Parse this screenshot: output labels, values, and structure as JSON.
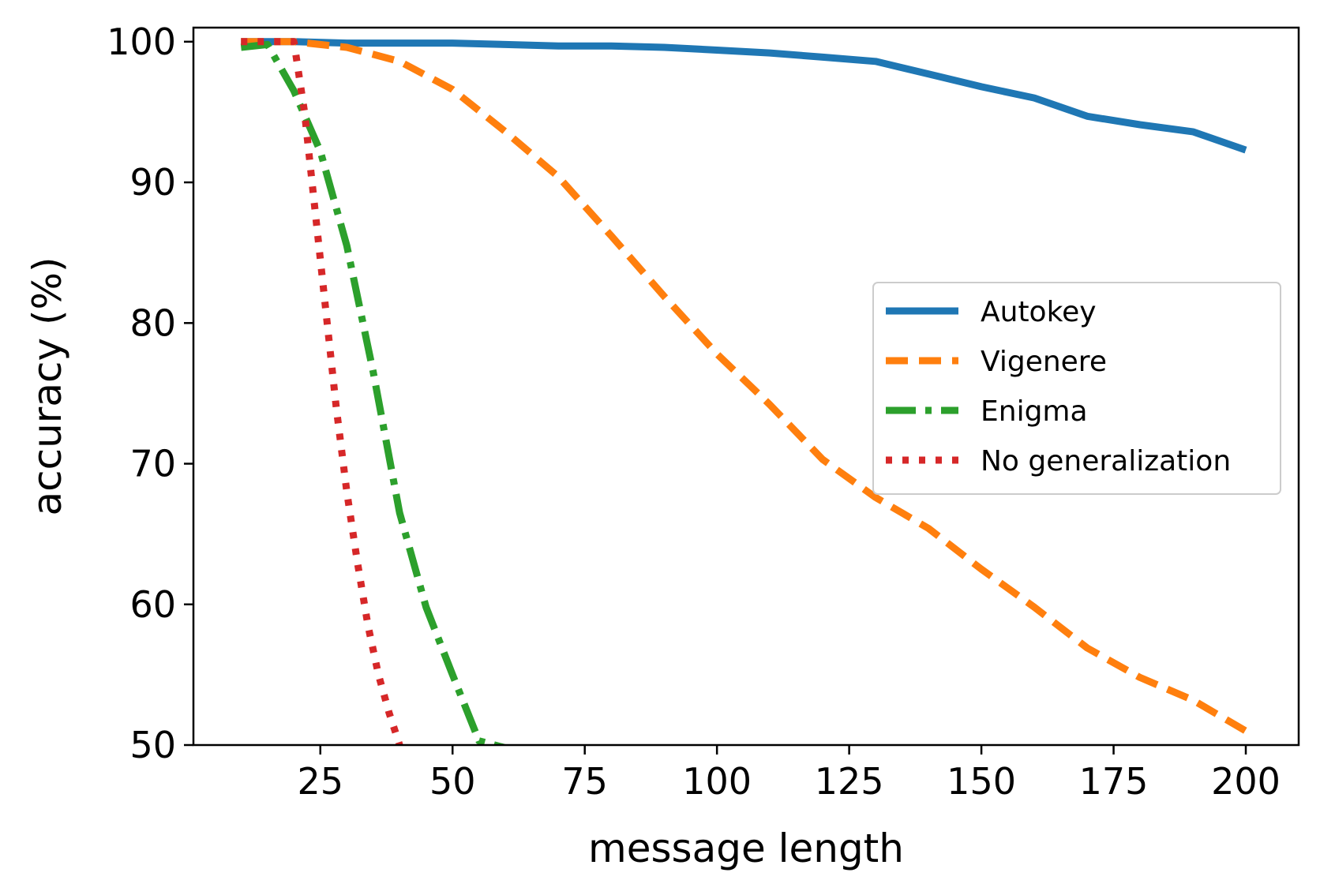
{
  "chart_data": {
    "type": "line",
    "title": "",
    "xlabel": "message length",
    "ylabel": "accuracy (%)",
    "xlim": [
      1,
      210
    ],
    "ylim": [
      50,
      101
    ],
    "xticks": [
      25,
      50,
      75,
      100,
      125,
      150,
      175,
      200
    ],
    "yticks": [
      50,
      60,
      70,
      80,
      90,
      100
    ],
    "grid": false,
    "legend_position": "center-right",
    "series": [
      {
        "name": "Autokey",
        "color": "#1f77b4",
        "style": "solid",
        "x": [
          10,
          20,
          30,
          40,
          50,
          60,
          70,
          80,
          90,
          100,
          110,
          120,
          130,
          140,
          150,
          160,
          170,
          180,
          190,
          200
        ],
        "y": [
          100,
          100,
          99.9,
          99.9,
          99.9,
          99.8,
          99.7,
          99.7,
          99.6,
          99.4,
          99.2,
          98.9,
          98.6,
          97.7,
          96.8,
          96.0,
          94.7,
          94.1,
          93.6,
          92.3
        ]
      },
      {
        "name": "Vigenere",
        "color": "#ff7f0e",
        "style": "dashed",
        "x": [
          10,
          20,
          30,
          40,
          50,
          60,
          70,
          80,
          90,
          100,
          110,
          120,
          130,
          140,
          150,
          160,
          170,
          180,
          190,
          200
        ],
        "y": [
          100,
          100,
          99.6,
          98.6,
          96.6,
          93.6,
          90.4,
          86.2,
          81.9,
          77.8,
          74.2,
          70.3,
          67.6,
          65.4,
          62.5,
          59.8,
          56.9,
          54.8,
          53.2,
          51.0
        ]
      },
      {
        "name": "Enigma",
        "color": "#2ca02c",
        "style": "dashdot",
        "x": [
          10,
          15,
          20,
          25,
          30,
          35,
          40,
          45,
          50,
          55,
          60
        ],
        "y": [
          99.6,
          99.8,
          96.5,
          92.2,
          85.5,
          76.5,
          66.5,
          59.8,
          55.0,
          50.3,
          49.8
        ]
      },
      {
        "name": "No generalization",
        "color": "#d62728",
        "style": "dotted",
        "x": [
          10,
          15,
          20,
          22,
          24,
          26,
          28,
          30,
          32,
          34,
          36,
          38,
          40
        ],
        "y": [
          100,
          100,
          100,
          95,
          88,
          81,
          74,
          68,
          63,
          58.5,
          55.0,
          52.3,
          50.0
        ]
      }
    ]
  }
}
